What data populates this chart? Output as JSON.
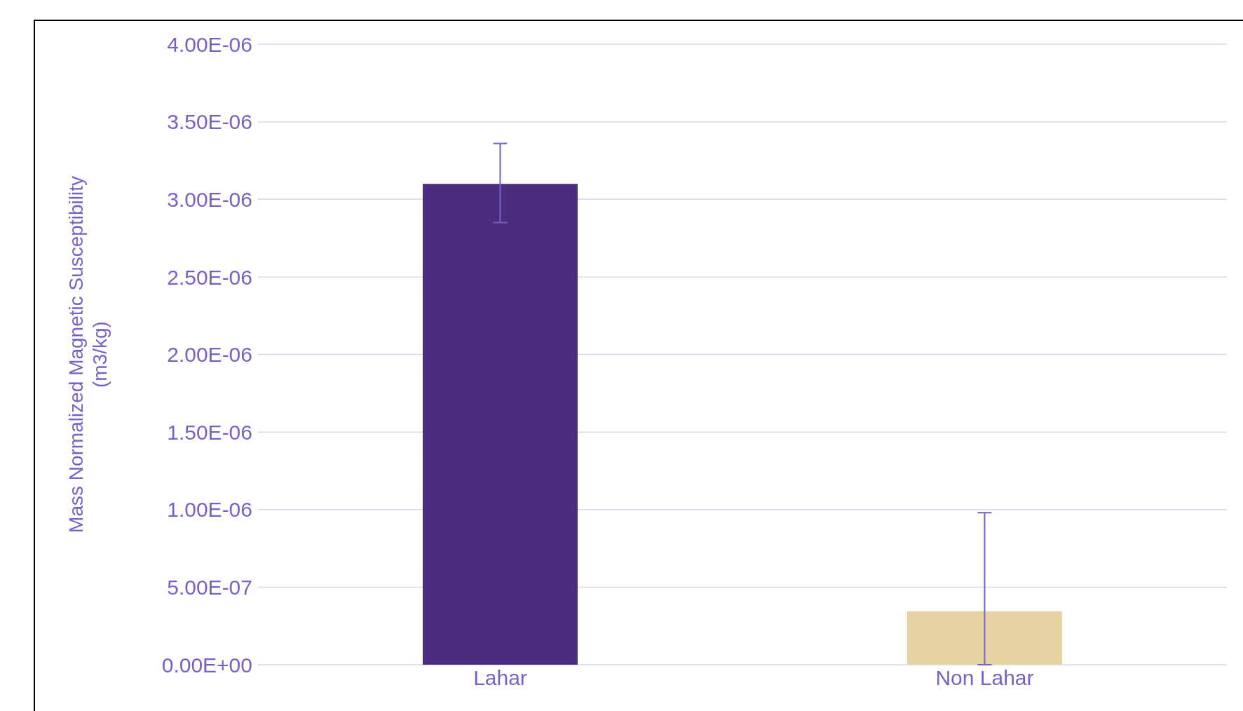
{
  "chart_data": {
    "type": "bar",
    "ylabel": "Mass Normalized Magnetic Susceptibility (m3/kg)",
    "categories": [
      "Lahar",
      "Non Lahar"
    ],
    "values": [
      3.1e-06,
      3.45e-07
    ],
    "colors": [
      "#4b2d7f",
      "#e6d3a3"
    ],
    "errors": [
      [
        2.85e-06,
        3.36e-06
      ],
      [
        0,
        9.8e-07
      ]
    ],
    "ylim": [
      0,
      4e-06
    ],
    "yticks": [
      {
        "value": 0,
        "label": "0.00E+00"
      },
      {
        "value": 5e-07,
        "label": "5.00E-07"
      },
      {
        "value": 1e-06,
        "label": "1.00E-06"
      },
      {
        "value": 1.5e-06,
        "label": "1.50E-06"
      },
      {
        "value": 2e-06,
        "label": "2.00E-06"
      },
      {
        "value": 2.5e-06,
        "label": "2.50E-06"
      },
      {
        "value": 3e-06,
        "label": "3.00E-06"
      },
      {
        "value": 3.5e-06,
        "label": "3.50E-06"
      },
      {
        "value": 4e-06,
        "label": "4.00E-06"
      }
    ],
    "grid": "y",
    "legend": false
  }
}
